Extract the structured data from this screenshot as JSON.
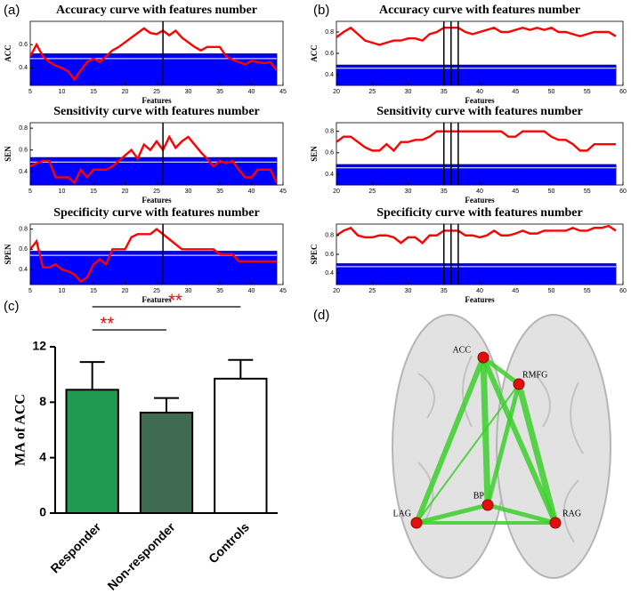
{
  "panel_labels": [
    "(a)",
    "(b)",
    "(c)",
    "(d)"
  ],
  "chart_data": [
    {
      "type": "line",
      "title": "Accuracy curve with features number",
      "xlabel": "Features",
      "ylabel": "ACC",
      "x": [
        5,
        6,
        7,
        8,
        9,
        10,
        11,
        12,
        13,
        14,
        15,
        16,
        17,
        18,
        19,
        20,
        21,
        22,
        23,
        24,
        25,
        26,
        27,
        28,
        29,
        30,
        31,
        32,
        33,
        34,
        35,
        36,
        37,
        38,
        39,
        40,
        41,
        42,
        43,
        44
      ],
      "xlim": [
        5,
        45
      ],
      "xticks": [
        5,
        10,
        15,
        20,
        25,
        30,
        35,
        40,
        45
      ],
      "ylim": [
        0.25,
        0.8
      ],
      "yticks": [
        0.4,
        0.6
      ],
      "vlines": [
        26
      ],
      "series": [
        {
          "style": "area",
          "color": "#0000ff",
          "x": [
            5,
            44
          ],
          "values": [
            0.52,
            0.52
          ]
        },
        {
          "style": "line",
          "color": "#ffffff",
          "x": [
            5,
            44
          ],
          "values": [
            0.48,
            0.48
          ]
        },
        {
          "style": "line",
          "color": "#ff0000",
          "values": [
            0.5,
            0.6,
            0.5,
            0.45,
            0.42,
            0.4,
            0.37,
            0.3,
            0.38,
            0.45,
            0.48,
            0.45,
            0.5,
            0.55,
            0.58,
            0.62,
            0.66,
            0.7,
            0.74,
            0.7,
            0.69,
            0.72,
            0.68,
            0.72,
            0.66,
            0.62,
            0.58,
            0.55,
            0.58,
            0.58,
            0.58,
            0.5,
            0.47,
            0.45,
            0.43,
            0.46,
            0.45,
            0.44,
            0.45,
            0.38
          ]
        }
      ]
    },
    {
      "type": "line",
      "title": "Sensitivity curve with features number",
      "xlabel": "Features",
      "ylabel": "SEN",
      "x": [
        5,
        6,
        7,
        8,
        9,
        10,
        11,
        12,
        13,
        14,
        15,
        16,
        17,
        18,
        19,
        20,
        21,
        22,
        23,
        24,
        25,
        26,
        27,
        28,
        29,
        30,
        31,
        32,
        33,
        34,
        35,
        36,
        37,
        38,
        39,
        40,
        41,
        42,
        43,
        44
      ],
      "xlim": [
        5,
        45
      ],
      "xticks": [
        5,
        10,
        15,
        20,
        25,
        30,
        35,
        40,
        45
      ],
      "ylim": [
        0.28,
        0.85
      ],
      "yticks": [
        0.4,
        0.6,
        0.8
      ],
      "vlines": [
        26
      ],
      "series": [
        {
          "style": "area",
          "color": "#0000ff",
          "x": [
            5,
            44
          ],
          "values": [
            0.53,
            0.53
          ]
        },
        {
          "style": "line",
          "color": "#ffffff",
          "x": [
            5,
            44
          ],
          "values": [
            0.49,
            0.49
          ]
        },
        {
          "style": "line",
          "color": "#ff0000",
          "values": [
            0.45,
            0.48,
            0.5,
            0.5,
            0.35,
            0.35,
            0.35,
            0.3,
            0.42,
            0.35,
            0.42,
            0.42,
            0.42,
            0.45,
            0.5,
            0.55,
            0.6,
            0.52,
            0.65,
            0.6,
            0.68,
            0.6,
            0.72,
            0.62,
            0.68,
            0.72,
            0.65,
            0.58,
            0.52,
            0.45,
            0.5,
            0.48,
            0.5,
            0.42,
            0.35,
            0.35,
            0.42,
            0.42,
            0.42,
            0.3
          ]
        }
      ]
    },
    {
      "type": "line",
      "title": "Specificity curve with features number",
      "xlabel": "Features",
      "ylabel": "SPEN",
      "x": [
        5,
        6,
        7,
        8,
        9,
        10,
        11,
        12,
        13,
        14,
        15,
        16,
        17,
        18,
        19,
        20,
        21,
        22,
        23,
        24,
        25,
        26,
        27,
        28,
        29,
        30,
        31,
        32,
        33,
        34,
        35,
        36,
        37,
        38,
        39,
        40,
        41,
        42,
        43,
        44
      ],
      "xlim": [
        5,
        45
      ],
      "xticks": [
        5,
        10,
        15,
        20,
        25,
        30,
        35,
        40,
        45
      ],
      "ylim": [
        0.25,
        0.85
      ],
      "yticks": [
        0.4,
        0.6,
        0.8
      ],
      "vlines": [
        26
      ],
      "series": [
        {
          "style": "area",
          "color": "#0000ff",
          "x": [
            5,
            44
          ],
          "values": [
            0.58,
            0.58
          ]
        },
        {
          "style": "line",
          "color": "#ffffff",
          "x": [
            5,
            44
          ],
          "values": [
            0.54,
            0.54
          ]
        },
        {
          "style": "line",
          "color": "#ff0000",
          "values": [
            0.6,
            0.68,
            0.42,
            0.42,
            0.45,
            0.4,
            0.38,
            0.35,
            0.28,
            0.32,
            0.45,
            0.5,
            0.45,
            0.6,
            0.6,
            0.6,
            0.72,
            0.75,
            0.75,
            0.75,
            0.8,
            0.75,
            0.7,
            0.65,
            0.6,
            0.6,
            0.6,
            0.6,
            0.6,
            0.6,
            0.55,
            0.55,
            0.55,
            0.48,
            0.48,
            0.48,
            0.48,
            0.48,
            0.48,
            0.48
          ]
        }
      ]
    },
    {
      "type": "line",
      "title": "Accuracy curve with features number",
      "xlabel": "Features",
      "ylabel": "ACC",
      "x": [
        20,
        21,
        22,
        23,
        24,
        25,
        26,
        27,
        28,
        29,
        30,
        31,
        32,
        33,
        34,
        35,
        36,
        37,
        38,
        39,
        40,
        41,
        42,
        43,
        44,
        45,
        46,
        47,
        48,
        49,
        50,
        51,
        52,
        53,
        54,
        55,
        56,
        57,
        58,
        59
      ],
      "xlim": [
        20,
        60
      ],
      "xticks": [
        20,
        25,
        30,
        35,
        40,
        45,
        50,
        55,
        60
      ],
      "ylim": [
        0.3,
        0.9
      ],
      "yticks": [
        0.4,
        0.6,
        0.8
      ],
      "vlines": [
        35,
        36,
        37
      ],
      "series": [
        {
          "style": "area",
          "color": "#0000ff",
          "x": [
            20,
            59
          ],
          "values": [
            0.49,
            0.49
          ]
        },
        {
          "style": "line",
          "color": "#ffffff",
          "x": [
            20,
            59
          ],
          "values": [
            0.46,
            0.46
          ]
        },
        {
          "style": "line",
          "color": "#ff0000",
          "values": [
            0.75,
            0.8,
            0.84,
            0.78,
            0.72,
            0.7,
            0.68,
            0.7,
            0.72,
            0.72,
            0.74,
            0.74,
            0.72,
            0.78,
            0.8,
            0.84,
            0.84,
            0.84,
            0.8,
            0.78,
            0.8,
            0.82,
            0.84,
            0.8,
            0.8,
            0.82,
            0.84,
            0.82,
            0.84,
            0.82,
            0.84,
            0.8,
            0.8,
            0.78,
            0.76,
            0.78,
            0.8,
            0.8,
            0.8,
            0.76
          ]
        }
      ]
    },
    {
      "type": "line",
      "title": "Sensitivity curve with features number",
      "xlabel": "Features",
      "ylabel": "SEN",
      "x": [
        20,
        21,
        22,
        23,
        24,
        25,
        26,
        27,
        28,
        29,
        30,
        31,
        32,
        33,
        34,
        35,
        36,
        37,
        38,
        39,
        40,
        41,
        42,
        43,
        44,
        45,
        46,
        47,
        48,
        49,
        50,
        51,
        52,
        53,
        54,
        55,
        56,
        57,
        58,
        59
      ],
      "xlim": [
        20,
        60
      ],
      "xticks": [
        20,
        25,
        30,
        35,
        40,
        45,
        50,
        55,
        60
      ],
      "ylim": [
        0.3,
        0.88
      ],
      "yticks": [
        0.4,
        0.6,
        0.8
      ],
      "vlines": [
        35,
        36,
        37
      ],
      "series": [
        {
          "style": "area",
          "color": "#0000ff",
          "x": [
            20,
            59
          ],
          "values": [
            0.49,
            0.49
          ]
        },
        {
          "style": "line",
          "color": "#ffffff",
          "x": [
            20,
            59
          ],
          "values": [
            0.46,
            0.46
          ]
        },
        {
          "style": "line",
          "color": "#ff0000",
          "values": [
            0.7,
            0.75,
            0.75,
            0.7,
            0.65,
            0.62,
            0.62,
            0.68,
            0.62,
            0.7,
            0.7,
            0.72,
            0.72,
            0.75,
            0.8,
            0.8,
            0.8,
            0.8,
            0.8,
            0.8,
            0.8,
            0.8,
            0.8,
            0.8,
            0.75,
            0.75,
            0.8,
            0.8,
            0.8,
            0.8,
            0.75,
            0.72,
            0.72,
            0.68,
            0.62,
            0.62,
            0.68,
            0.68,
            0.68,
            0.68
          ]
        }
      ]
    },
    {
      "type": "line",
      "title": "Specificity curve with features number",
      "xlabel": "Features",
      "ylabel": "SPEC",
      "x": [
        20,
        21,
        22,
        23,
        24,
        25,
        26,
        27,
        28,
        29,
        30,
        31,
        32,
        33,
        34,
        35,
        36,
        37,
        38,
        39,
        40,
        41,
        42,
        43,
        44,
        45,
        46,
        47,
        48,
        49,
        50,
        51,
        52,
        53,
        54,
        55,
        56,
        57,
        58,
        59
      ],
      "xlim": [
        20,
        60
      ],
      "xticks": [
        20,
        25,
        30,
        35,
        40,
        45,
        50,
        55,
        60
      ],
      "ylim": [
        0.28,
        0.92
      ],
      "yticks": [
        0.4,
        0.6,
        0.8
      ],
      "vlines": [
        35,
        36,
        37
      ],
      "series": [
        {
          "style": "area",
          "color": "#0000ff",
          "x": [
            20,
            59
          ],
          "values": [
            0.5,
            0.5
          ]
        },
        {
          "style": "line",
          "color": "#ffffff",
          "x": [
            20,
            59
          ],
          "values": [
            0.47,
            0.47
          ]
        },
        {
          "style": "line",
          "color": "#ff0000",
          "values": [
            0.8,
            0.85,
            0.88,
            0.8,
            0.78,
            0.78,
            0.8,
            0.8,
            0.78,
            0.72,
            0.78,
            0.78,
            0.72,
            0.8,
            0.8,
            0.85,
            0.85,
            0.85,
            0.8,
            0.8,
            0.78,
            0.8,
            0.85,
            0.8,
            0.8,
            0.82,
            0.85,
            0.82,
            0.82,
            0.85,
            0.85,
            0.85,
            0.85,
            0.88,
            0.85,
            0.85,
            0.88,
            0.88,
            0.9,
            0.85
          ]
        }
      ]
    },
    {
      "type": "bar",
      "ylabel": "MA of ACC",
      "categories": [
        "Responder",
        "Non-responder",
        "Controls"
      ],
      "values": [
        8.9,
        7.25,
        9.7
      ],
      "errors": [
        2.0,
        1.05,
        1.35
      ],
      "colors": [
        "#1f9a4f",
        "#3f6b52",
        "#ffffff"
      ],
      "ylim": [
        0,
        12
      ],
      "yticks": [
        0,
        4,
        8,
        12
      ],
      "annotations": [
        {
          "between": [
            0,
            1
          ],
          "label": "**"
        },
        {
          "between": [
            0,
            2
          ],
          "label": "**"
        }
      ],
      "annotation_color": "#ff0000"
    }
  ],
  "diagram": {
    "nodes": [
      {
        "label": "ACC"
      },
      {
        "label": "RMFG"
      },
      {
        "label": "BP"
      },
      {
        "label": "LAG"
      },
      {
        "label": "RAG"
      }
    ],
    "edges": [
      [
        0,
        1
      ],
      [
        0,
        2
      ],
      [
        0,
        3
      ],
      [
        0,
        4
      ],
      [
        1,
        2
      ],
      [
        1,
        4
      ],
      [
        1,
        3
      ],
      [
        2,
        3
      ],
      [
        2,
        4
      ],
      [
        3,
        4
      ]
    ]
  }
}
